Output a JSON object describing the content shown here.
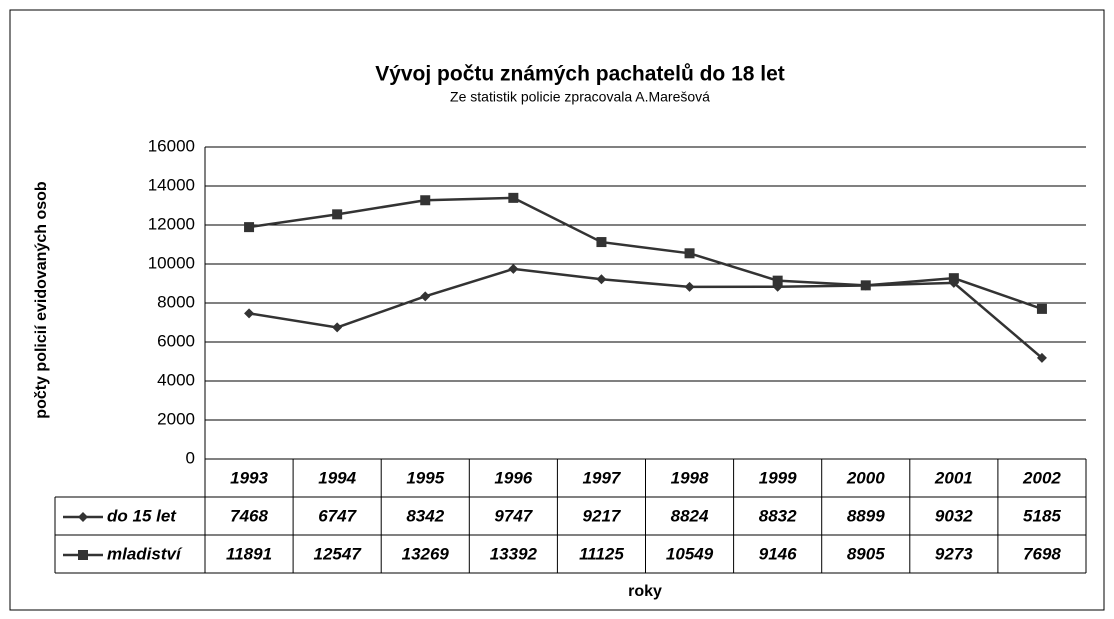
{
  "chart_data": {
    "type": "line",
    "title": "Vývoj počtu známých pachatelů do 18 let",
    "subtitle": "Ze statistik policie zpracovala A.Marešová",
    "xlabel": "roky",
    "ylabel": "počty policií evidovaných osob",
    "categories": [
      "1993",
      "1994",
      "1995",
      "1996",
      "1997",
      "1998",
      "1999",
      "2000",
      "2001",
      "2002"
    ],
    "series": [
      {
        "name": "do 15 let",
        "color": "#333333",
        "marker": "diamond",
        "values": [
          7468,
          6747,
          8342,
          9747,
          9217,
          8824,
          8832,
          8899,
          9032,
          5185
        ]
      },
      {
        "name": "mladiství",
        "color": "#333333",
        "marker": "square",
        "values": [
          11891,
          12547,
          13269,
          13392,
          11125,
          10549,
          9146,
          8905,
          9273,
          7698
        ]
      }
    ],
    "ylim": [
      0,
      16000
    ],
    "yticks": [
      0,
      2000,
      4000,
      6000,
      8000,
      10000,
      12000,
      14000,
      16000
    ],
    "grid": true
  }
}
